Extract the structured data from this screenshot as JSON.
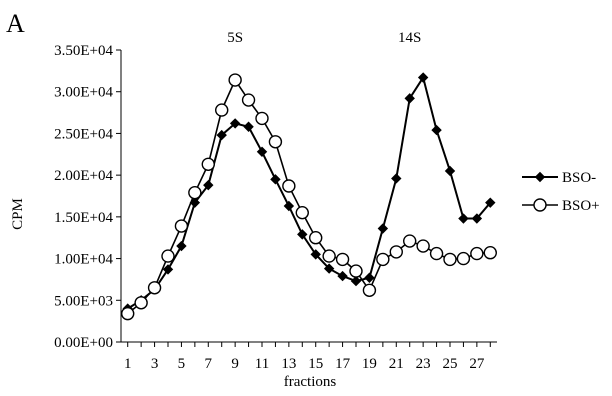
{
  "chart_data": {
    "type": "line",
    "panel_label": "A",
    "xlabel": "fractions",
    "ylabel": "CPM",
    "ylim": [
      0,
      35000
    ],
    "yticks": [
      "0.00E+00",
      "5.00E+03",
      "1.00E+04",
      "1.50E+04",
      "2.00E+04",
      "2.50E+04",
      "3.00E+04",
      "3.50E+04"
    ],
    "xticks": [
      "1",
      "3",
      "5",
      "7",
      "9",
      "11",
      "13",
      "15",
      "17",
      "19",
      "21",
      "23",
      "25",
      "27"
    ],
    "annotations": [
      {
        "text": "5S",
        "x": 9
      },
      {
        "text": "14S",
        "x": 22
      }
    ],
    "grid": false,
    "legend_position": "right",
    "x": [
      1,
      2,
      3,
      4,
      5,
      6,
      7,
      8,
      9,
      10,
      11,
      12,
      13,
      14,
      15,
      16,
      17,
      18,
      19,
      20,
      21,
      22,
      23,
      24,
      25,
      26,
      27,
      28
    ],
    "series": [
      {
        "name": "BSO-",
        "marker": "filled-diamond",
        "color": "#000000",
        "values": [
          4000,
          5000,
          6300,
          8700,
          11500,
          16700,
          18800,
          24800,
          26200,
          25800,
          22800,
          19500,
          16300,
          12900,
          10500,
          8800,
          7900,
          7300,
          7700,
          13600,
          19600,
          29200,
          31700,
          25400,
          20500,
          14800,
          14800,
          16700
        ]
      },
      {
        "name": "BSO+",
        "marker": "open-circle",
        "color": "#000000",
        "values": [
          3400,
          4700,
          6500,
          10300,
          13900,
          17900,
          21300,
          27800,
          31400,
          29000,
          26800,
          24000,
          18700,
          15500,
          12500,
          10300,
          9900,
          8500,
          6200,
          9900,
          10800,
          12100,
          11500,
          10600,
          9900,
          10000,
          10600,
          10700
        ]
      }
    ]
  }
}
